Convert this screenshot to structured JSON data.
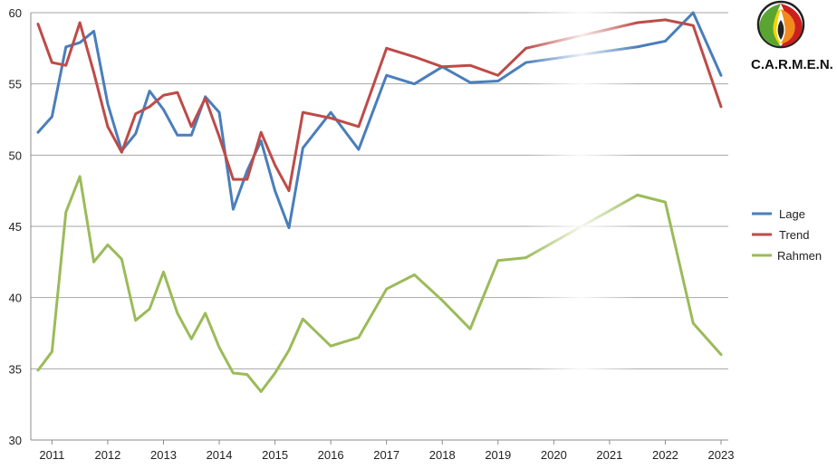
{
  "chart_data": {
    "type": "line",
    "title": "",
    "xlabel": "",
    "ylabel": "",
    "ylim": [
      30,
      60
    ],
    "y_ticks": [
      "30",
      "35",
      "40",
      "45",
      "50",
      "55",
      "60"
    ],
    "xlim": [
      2010.75,
      2023.0
    ],
    "x_ticks": [
      "2011",
      "2012",
      "2013",
      "2014",
      "2015",
      "2016",
      "2017",
      "2018",
      "2019",
      "2020",
      "2021",
      "2022",
      "2023"
    ],
    "grid": "horizontal",
    "legend_position": "right",
    "series": [
      {
        "name": "Lage",
        "color": "#4a7ebb",
        "x": [
          2010.75,
          2011.0,
          2011.25,
          2011.5,
          2011.75,
          2012.0,
          2012.25,
          2012.5,
          2012.75,
          2013.0,
          2013.25,
          2013.5,
          2013.75,
          2014.0,
          2014.25,
          2014.5,
          2014.75,
          2015.0,
          2015.25,
          2015.5,
          2016.0,
          2016.5,
          2017.0,
          2017.5,
          2018.0,
          2018.5,
          2019.0,
          2019.5,
          2021.5,
          2022.0,
          2022.5,
          2023.0
        ],
        "values": [
          51.6,
          52.7,
          57.6,
          57.9,
          58.7,
          53.6,
          50.3,
          51.5,
          54.5,
          53.2,
          51.4,
          51.4,
          54.1,
          53.0,
          46.2,
          48.9,
          51.0,
          47.5,
          44.9,
          50.5,
          53.0,
          50.4,
          55.6,
          55.0,
          56.2,
          55.1,
          55.2,
          56.5,
          57.6,
          58.0,
          60.0,
          55.6
        ]
      },
      {
        "name": "Trend",
        "color": "#be4b48",
        "x": [
          2010.75,
          2011.0,
          2011.25,
          2011.5,
          2011.75,
          2012.0,
          2012.25,
          2012.5,
          2012.75,
          2013.0,
          2013.25,
          2013.5,
          2013.75,
          2014.0,
          2014.25,
          2014.5,
          2014.75,
          2015.0,
          2015.25,
          2015.5,
          2016.0,
          2016.5,
          2017.0,
          2017.5,
          2018.0,
          2018.5,
          2019.0,
          2019.5,
          2021.5,
          2022.0,
          2022.5,
          2023.0
        ],
        "values": [
          59.2,
          56.5,
          56.3,
          59.3,
          55.8,
          52.0,
          50.2,
          52.9,
          53.4,
          54.2,
          54.4,
          52.0,
          54.0,
          51.3,
          48.3,
          48.3,
          51.6,
          49.3,
          47.5,
          53.0,
          52.6,
          52.0,
          57.5,
          56.9,
          56.2,
          56.3,
          55.6,
          57.5,
          59.3,
          59.5,
          59.1,
          53.4
        ]
      },
      {
        "name": "Rahmen",
        "color": "#9bbb59",
        "x": [
          2010.75,
          2011.0,
          2011.25,
          2011.5,
          2011.75,
          2012.0,
          2012.25,
          2012.5,
          2012.75,
          2013.0,
          2013.25,
          2013.5,
          2013.75,
          2014.0,
          2014.25,
          2014.5,
          2014.75,
          2015.0,
          2015.25,
          2015.5,
          2016.0,
          2016.5,
          2017.0,
          2017.5,
          2018.0,
          2018.5,
          2019.0,
          2019.5,
          2021.5,
          2022.0,
          2022.5,
          2023.0
        ],
        "values": [
          34.9,
          36.2,
          46.0,
          48.5,
          42.5,
          43.7,
          42.7,
          38.4,
          39.2,
          41.8,
          38.9,
          37.1,
          38.9,
          36.5,
          34.7,
          34.6,
          33.4,
          34.7,
          36.3,
          38.5,
          36.6,
          37.2,
          40.6,
          41.6,
          39.8,
          37.8,
          42.6,
          42.8,
          47.2,
          46.7,
          38.2,
          36.0
        ]
      }
    ],
    "faded_gap": [
      2019.5,
      2021.5
    ]
  },
  "logo": {
    "text": "C.A.R.M.E.N.",
    "colors": [
      "#cc1f1f",
      "#f08a1c",
      "#f5d400",
      "#5aa532",
      "#222222"
    ]
  }
}
